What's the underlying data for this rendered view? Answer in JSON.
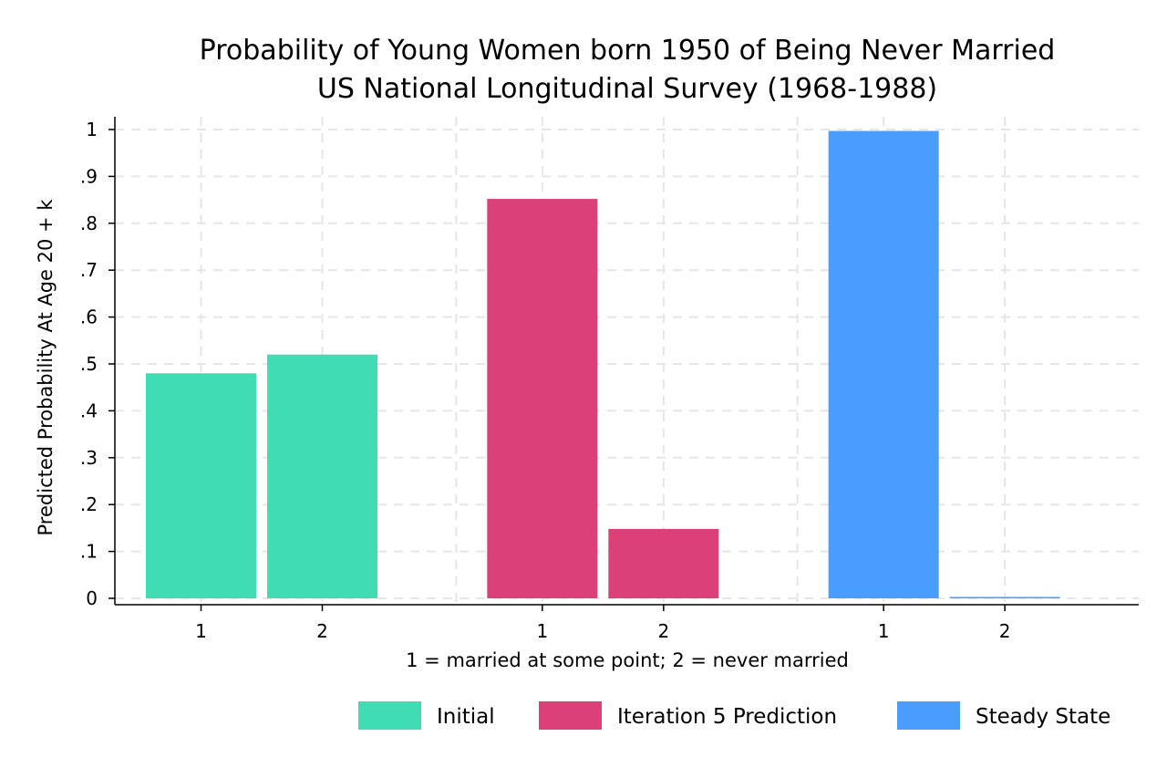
{
  "chart_data": {
    "type": "bar",
    "title": [
      "Probability of Young Women born 1950 of Being Never Married",
      "US National Longitudinal Survey (1968-1988)"
    ],
    "xlabel": "1 = married at some point; 2 = never married",
    "ylabel": "Predicted Probability At Age 20 + k",
    "ylim": [
      0,
      1
    ],
    "yticks": [
      0,
      0.1,
      0.2,
      0.3,
      0.4,
      0.5,
      0.6,
      0.7,
      0.8,
      0.9,
      1
    ],
    "ytick_labels": [
      "0",
      ".1",
      ".2",
      ".3",
      ".4",
      ".5",
      ".6",
      ".7",
      ".8",
      ".9",
      "1"
    ],
    "categories": [
      "1",
      "2"
    ],
    "grid": true,
    "legend_position": "bottom",
    "series": [
      {
        "name": "Initial",
        "color": "#40dcb4",
        "values": [
          0.48,
          0.52
        ]
      },
      {
        "name": "Iteration 5 Prediction",
        "color": "#dc4078",
        "values": [
          0.852,
          0.148
        ]
      },
      {
        "name": "Steady State",
        "color": "#4a9dff",
        "values": [
          0.997,
          0.003
        ]
      }
    ]
  }
}
